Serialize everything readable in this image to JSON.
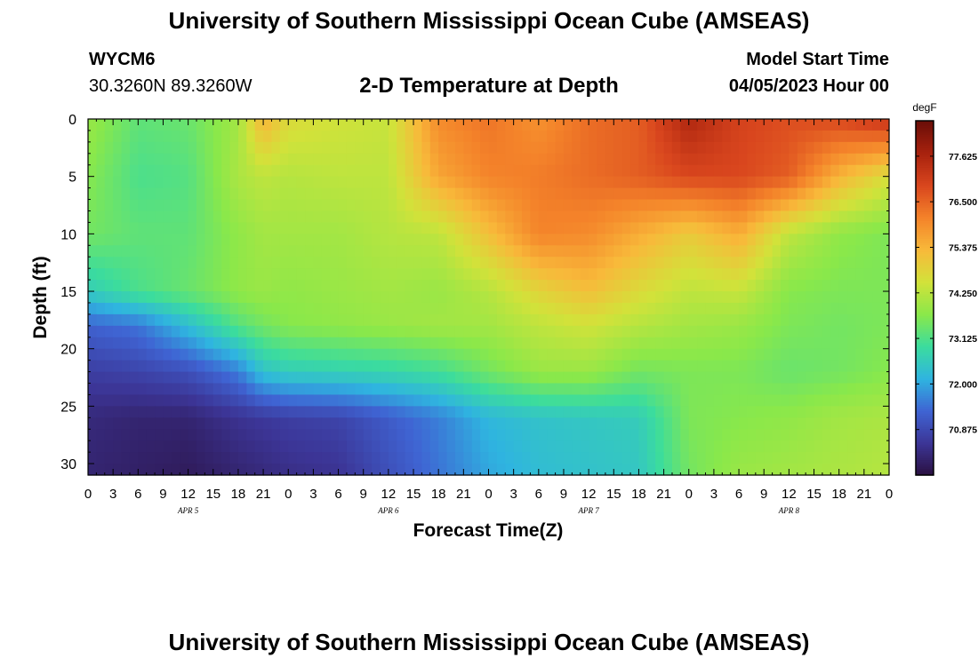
{
  "header": {
    "title": "University of Southern Mississippi Ocean Cube (AMSEAS)",
    "station": "WYCM6",
    "coords": "30.3260N  89.3260W",
    "plot_title": "2-D Temperature at Depth",
    "model_start_label": "Model Start Time",
    "model_start_value": "04/05/2023 Hour 00"
  },
  "footer": {
    "title": "University of Southern Mississippi Ocean Cube (AMSEAS)"
  },
  "chart_data": {
    "type": "heatmap",
    "title": "2-D Temperature at Depth",
    "xlabel": "Forecast Time(Z)",
    "ylabel": "Depth (ft)",
    "x_tick_labels": [
      "0",
      "3",
      "6",
      "9",
      "12",
      "15",
      "18",
      "21",
      "0",
      "3",
      "6",
      "9",
      "12",
      "15",
      "18",
      "21",
      "0",
      "3",
      "6",
      "9",
      "12",
      "15",
      "18",
      "21",
      "0",
      "3",
      "6",
      "9",
      "12",
      "15",
      "18",
      "21",
      "0"
    ],
    "x_range_hours": [
      0,
      96
    ],
    "day_labels": [
      {
        "label": "APR 5",
        "hour": 12
      },
      {
        "label": "APR 6",
        "hour": 36
      },
      {
        "label": "APR 7",
        "hour": 60
      },
      {
        "label": "APR 8",
        "hour": 84
      }
    ],
    "y_ticks": [
      0,
      5,
      10,
      15,
      20,
      25,
      30
    ],
    "ylim": [
      0,
      31
    ],
    "y_inverted": true,
    "colorbar": {
      "unit": "degF",
      "min": 69.75,
      "max": 78.5,
      "tick_values": [
        77.625,
        76.5,
        75.375,
        74.25,
        73.125,
        72.0,
        70.875
      ],
      "tick_labels": [
        "77.625",
        "76.500",
        "75.375",
        "74.250",
        "73.125",
        "72.000",
        "70.875"
      ],
      "colors": [
        "#2a1040",
        "#3c3596",
        "#3f64d3",
        "#2fb4e0",
        "#3bdc9e",
        "#8ae84a",
        "#d2e23a",
        "#f8b93a",
        "#f4832a",
        "#d9461e",
        "#a8220e",
        "#6a0e08"
      ]
    },
    "depths_ft": [
      0,
      5,
      10,
      15,
      18,
      22,
      26,
      31
    ],
    "times_hours": [
      0,
      6,
      12,
      18,
      21,
      24,
      30,
      36,
      42,
      48,
      54,
      60,
      66,
      72,
      78,
      84,
      90,
      96
    ],
    "temperature_degF": [
      [
        73.9,
        73.3,
        73.4,
        74.0,
        75.4,
        74.7,
        74.5,
        74.4,
        76.0,
        76.3,
        75.9,
        76.4,
        76.6,
        77.6,
        77.0,
        76.8,
        76.9,
        77.3
      ],
      [
        73.7,
        73.1,
        73.2,
        74.1,
        74.3,
        74.2,
        74.3,
        74.3,
        75.6,
        76.1,
        76.2,
        76.4,
        76.6,
        76.9,
        76.9,
        76.6,
        75.4,
        74.6
      ],
      [
        73.5,
        73.3,
        73.3,
        73.8,
        74.0,
        74.0,
        74.0,
        74.2,
        74.3,
        75.2,
        76.1,
        76.0,
        75.5,
        75.0,
        75.5,
        74.3,
        73.8,
        73.6
      ],
      [
        72.6,
        73.1,
        73.4,
        73.8,
        73.9,
        73.8,
        73.9,
        74.0,
        73.9,
        74.2,
        74.8,
        75.2,
        74.7,
        74.3,
        74.4,
        73.7,
        73.6,
        73.6
      ],
      [
        71.3,
        71.5,
        72.3,
        73.2,
        73.5,
        73.7,
        73.8,
        73.9,
        74.0,
        74.0,
        74.3,
        74.5,
        74.2,
        74.0,
        73.9,
        73.6,
        73.5,
        73.6
      ],
      [
        70.7,
        70.8,
        71.0,
        71.6,
        72.4,
        72.6,
        72.7,
        72.8,
        73.0,
        73.5,
        73.9,
        73.9,
        73.5,
        73.6,
        73.6,
        73.4,
        73.5,
        73.7
      ],
      [
        70.3,
        70.2,
        70.2,
        70.5,
        70.6,
        70.7,
        70.8,
        71.2,
        71.6,
        72.2,
        72.4,
        72.5,
        72.6,
        73.6,
        73.7,
        73.8,
        74.0,
        74.1
      ],
      [
        70.2,
        70.1,
        70.0,
        70.2,
        70.3,
        70.4,
        70.5,
        71.0,
        71.5,
        72.0,
        72.3,
        72.4,
        72.5,
        73.5,
        73.9,
        74.0,
        74.1,
        74.2
      ]
    ]
  }
}
